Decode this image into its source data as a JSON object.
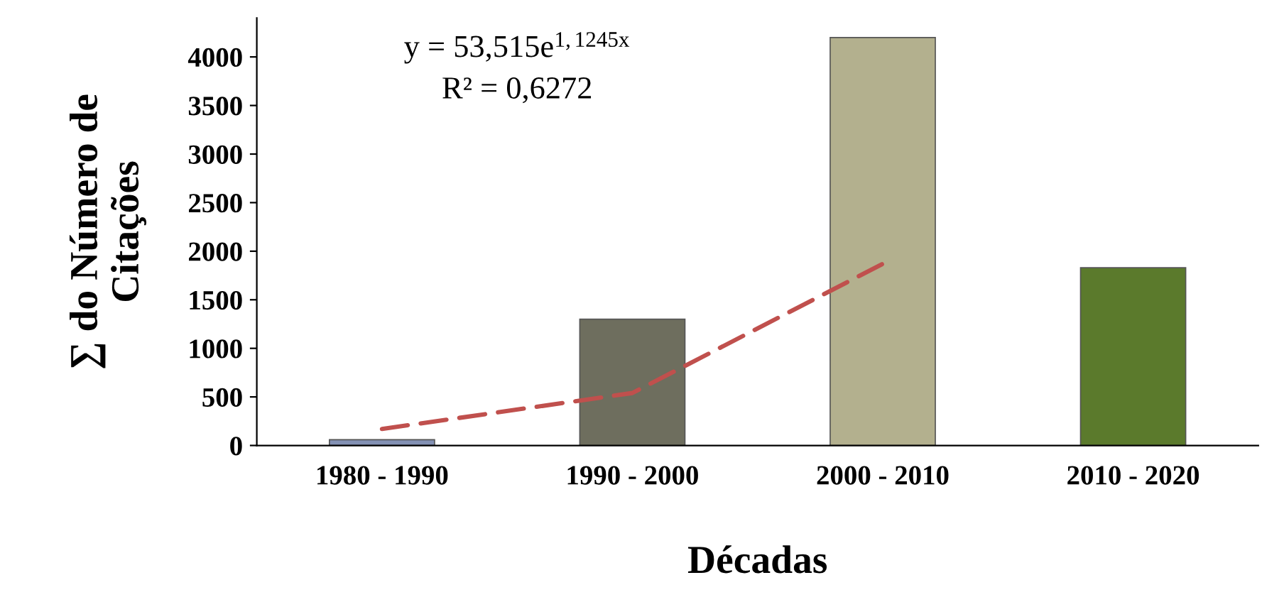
{
  "chart_data": {
    "type": "bar",
    "xlabel": "Décadas",
    "ylabel": "∑ do Número de\nCitações",
    "categories": [
      "1980 - 1990",
      "1990 - 2000",
      "2000 - 2010",
      "2010 - 2020"
    ],
    "series": [
      {
        "values": [
          60,
          1300,
          4200,
          1830
        ],
        "colors": [
          "#8391b4",
          "#6e6e5e",
          "#b3b08e",
          "#5b7a2c"
        ]
      },
      {
        "type": "line",
        "values": [
          170,
          540,
          1870,
          null
        ],
        "color": "#c0504d",
        "line_style": "dashed"
      }
    ],
    "ylim": [
      0,
      4400
    ],
    "yticks": [
      0,
      500,
      1000,
      1500,
      2000,
      2500,
      3000,
      3500,
      4000
    ],
    "annotations": [
      "y = 53,515e$^{1,1245x}$",
      "R² = 0,6272"
    ],
    "grid": false,
    "legend": false
  }
}
